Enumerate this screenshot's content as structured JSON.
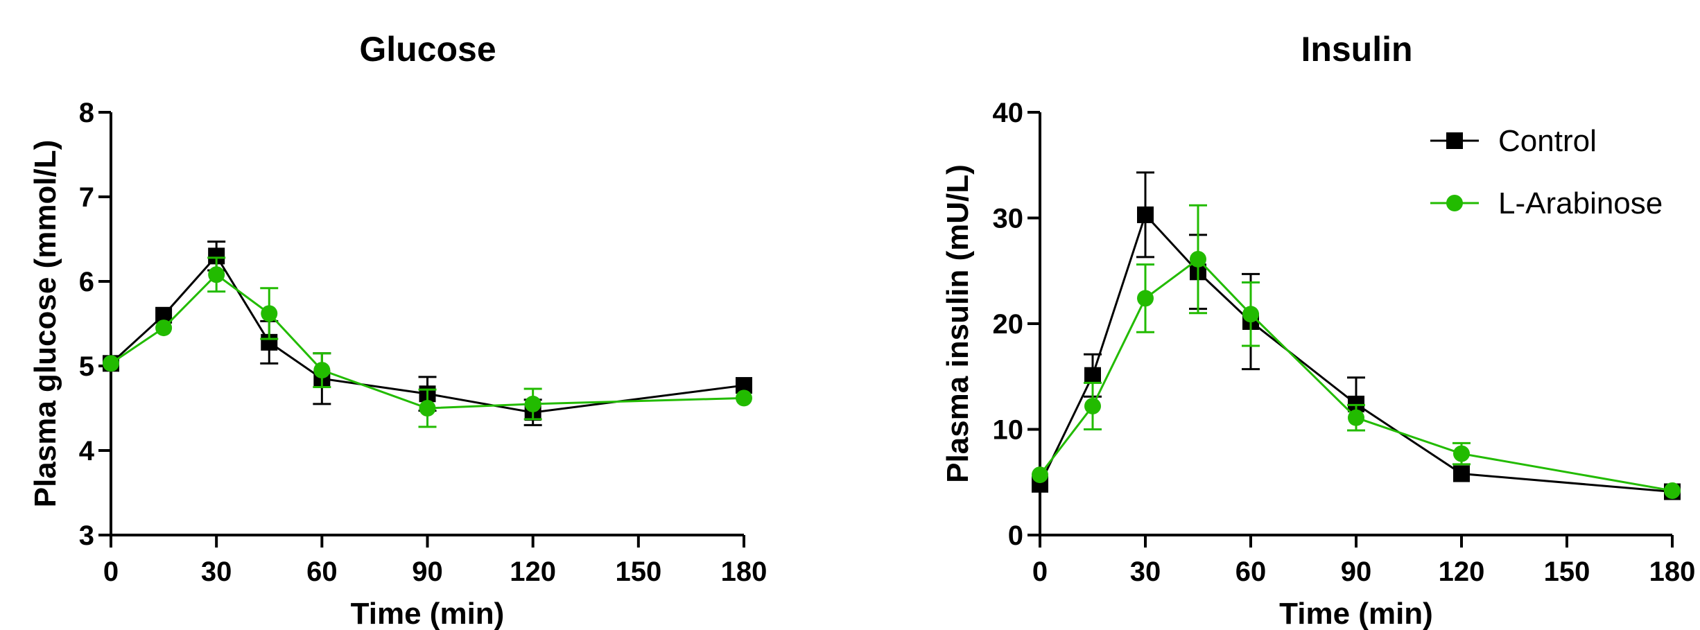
{
  "chart_data": [
    {
      "type": "line",
      "title": "Glucose",
      "xlabel": "Time (min)",
      "ylabel": "Plasma glucose (mmol/L)",
      "xlim": [
        0,
        180
      ],
      "ylim": [
        3,
        8
      ],
      "x_ticks": [
        "0",
        "30",
        "60",
        "90",
        "120",
        "150",
        "180"
      ],
      "y_ticks": [
        "3",
        "4",
        "5",
        "6",
        "7",
        "8"
      ],
      "legend": false,
      "series": [
        {
          "name": "Control",
          "color": "#000000",
          "marker": "square",
          "x": [
            0,
            15,
            30,
            45,
            60,
            90,
            120,
            180
          ],
          "y": [
            5.03,
            5.6,
            6.3,
            5.28,
            4.85,
            4.67,
            4.45,
            4.77
          ],
          "err": [
            0.0,
            0.0,
            0.17,
            0.25,
            0.3,
            0.2,
            0.15,
            0.0
          ]
        },
        {
          "name": "L-Arabinose",
          "color": "#22bb00",
          "marker": "circle",
          "x": [
            0,
            15,
            30,
            45,
            60,
            90,
            120,
            180
          ],
          "y": [
            5.03,
            5.45,
            6.08,
            5.62,
            4.95,
            4.5,
            4.55,
            4.62
          ],
          "err": [
            0.0,
            0.0,
            0.2,
            0.3,
            0.2,
            0.22,
            0.18,
            0.0
          ]
        }
      ]
    },
    {
      "type": "line",
      "title": "Insulin",
      "xlabel": "Time (min)",
      "ylabel": "Plasma insulin (mU/L)",
      "xlim": [
        0,
        180
      ],
      "ylim": [
        0,
        40
      ],
      "x_ticks": [
        "0",
        "30",
        "60",
        "90",
        "120",
        "150",
        "180"
      ],
      "y_ticks": [
        "0",
        "10",
        "20",
        "30",
        "40"
      ],
      "legend": "top-right",
      "series": [
        {
          "name": "Control",
          "color": "#000000",
          "marker": "square",
          "x": [
            0,
            15,
            30,
            45,
            60,
            90,
            120,
            180
          ],
          "y": [
            4.8,
            15.1,
            30.3,
            24.9,
            20.2,
            12.4,
            5.8,
            4.1
          ],
          "err": [
            0.0,
            2.0,
            4.0,
            3.5,
            4.5,
            2.5,
            0.0,
            0.0
          ]
        },
        {
          "name": "L-Arabinose",
          "color": "#22bb00",
          "marker": "circle",
          "x": [
            0,
            15,
            30,
            45,
            60,
            90,
            120,
            180
          ],
          "y": [
            5.7,
            12.2,
            22.4,
            26.1,
            20.9,
            11.1,
            7.7,
            4.2
          ],
          "err": [
            0.0,
            2.2,
            3.2,
            5.1,
            3.0,
            1.2,
            1.0,
            0.0
          ]
        }
      ]
    }
  ]
}
